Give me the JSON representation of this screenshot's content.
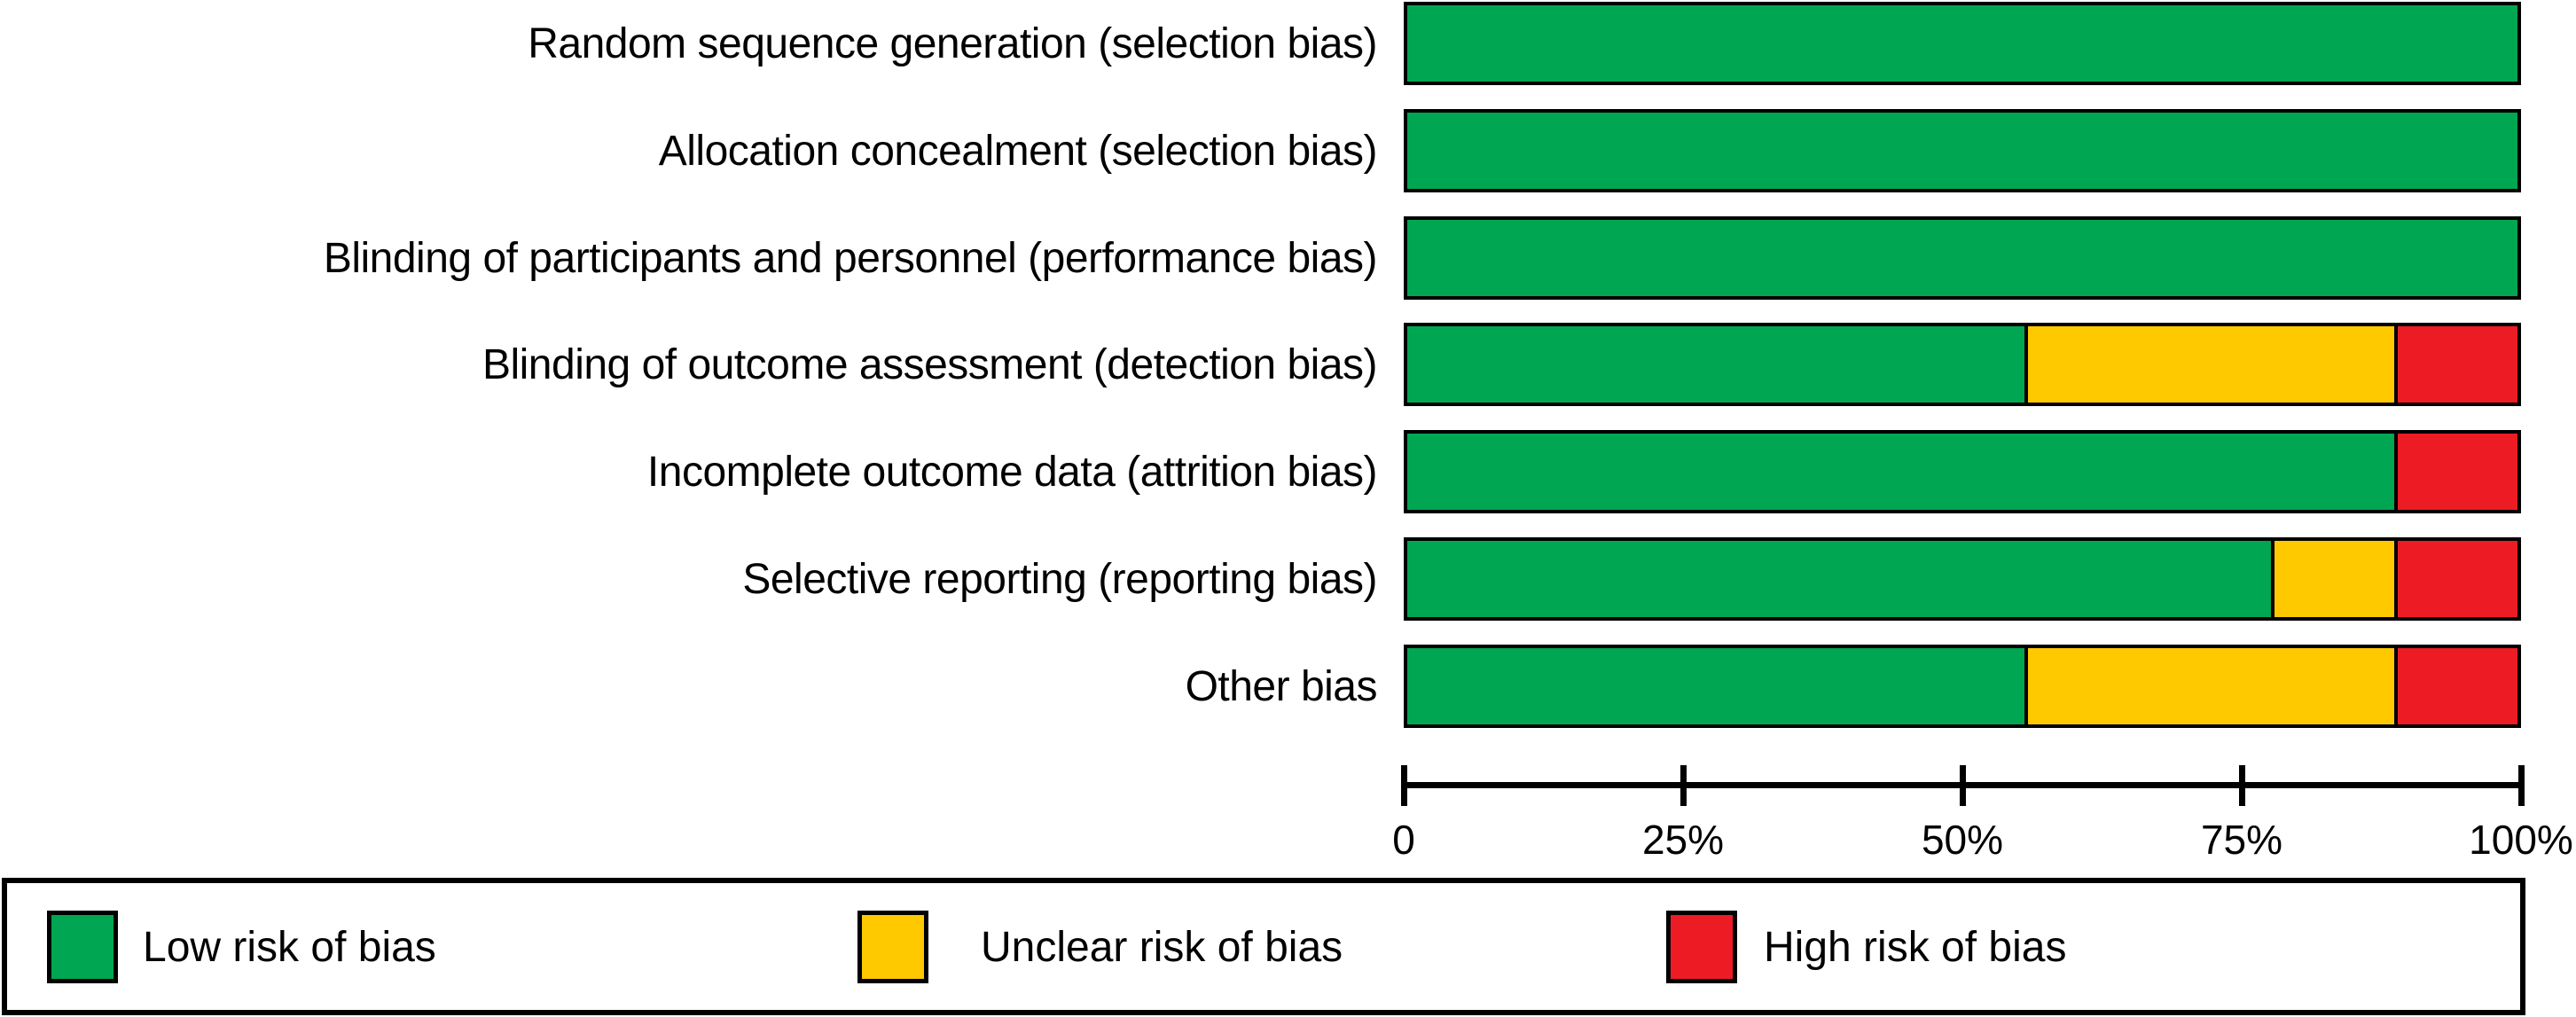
{
  "chart_data": {
    "type": "bar",
    "subtype": "horizontal-stacked-percentage",
    "title": "",
    "xlabel": "",
    "ylabel": "",
    "xlim": [
      0,
      100
    ],
    "x_ticks": [
      "0",
      "25%",
      "50%",
      "75%",
      "100%"
    ],
    "x_tick_percents": [
      0,
      25,
      50,
      75,
      100
    ],
    "grid": "off",
    "legend_position": "bottom",
    "categories": [
      "Random sequence generation (selection bias)",
      "Allocation concealment (selection bias)",
      "Blinding of participants and personnel (performance bias)",
      "Blinding of outcome assessment (detection bias)",
      "Incomplete outcome data (attrition bias)",
      "Selective reporting (reporting bias)",
      "Other bias"
    ],
    "series": [
      {
        "name": "Low risk of bias",
        "color": "#00A651",
        "values": [
          100,
          100,
          100,
          55.6,
          88.9,
          77.8,
          55.6
        ]
      },
      {
        "name": "Unclear risk of bias",
        "color": "#FFC900",
        "values": [
          0,
          0,
          0,
          33.3,
          0,
          11.1,
          33.3
        ]
      },
      {
        "name": "High risk of bias",
        "color": "#ED1C24",
        "values": [
          0,
          0,
          0,
          11.1,
          11.1,
          11.1,
          11.1
        ]
      }
    ]
  },
  "legend": {
    "items": [
      {
        "label": "Low risk of bias",
        "color": "#00A651"
      },
      {
        "label": "Unclear risk of bias",
        "color": "#FFC900"
      },
      {
        "label": "High risk of bias",
        "color": "#ED1C24"
      }
    ]
  }
}
